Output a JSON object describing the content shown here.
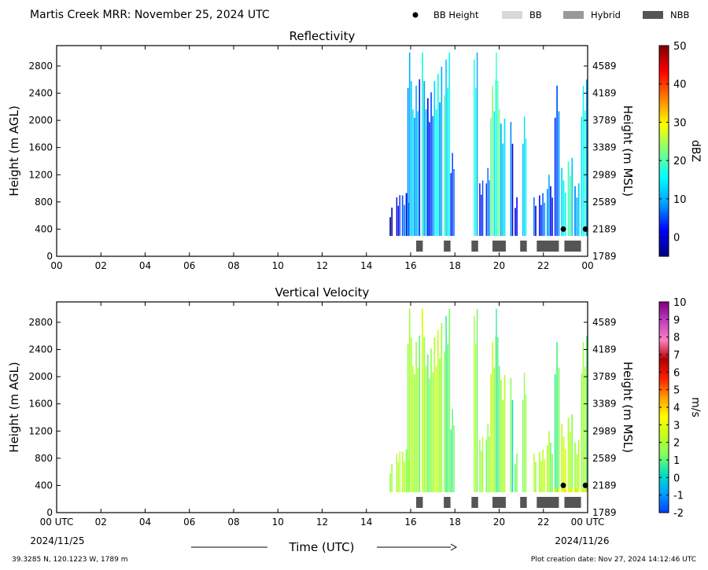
{
  "header": {
    "title": "Martis Creek MRR:  November 25, 2024 UTC",
    "legend": [
      {
        "label": "BB Height",
        "kind": "dot",
        "color": "#000000"
      },
      {
        "label": "BB",
        "kind": "rect",
        "color": "#d9d9d9"
      },
      {
        "label": "Hybrid",
        "kind": "rect",
        "color": "#999999"
      },
      {
        "label": "NBB",
        "kind": "rect",
        "color": "#555555"
      }
    ]
  },
  "colors": {
    "dbz_stops": [
      "#000080",
      "#0000ff",
      "#00a0ff",
      "#00ffff",
      "#7fff7f",
      "#ffff00",
      "#ff8000",
      "#ff0000",
      "#800000"
    ],
    "vv_stops": [
      "#0040ff",
      "#00a0ff",
      "#00e0c0",
      "#80ff60",
      "#c0ff20",
      "#ffff00",
      "#ffa000",
      "#ff2000",
      "#b00000",
      "#ff80c0",
      "#c040c0",
      "#800080"
    ]
  },
  "chart_data": [
    {
      "type": "heatmap",
      "title": "Reflectivity",
      "xlabel": "",
      "ylabel": "Height (m AGL)",
      "ylabel_right": "Height (m MSL)",
      "xlim": [
        0,
        24
      ],
      "ylim": [
        0,
        3100
      ],
      "x_ticks": [
        "00",
        "02",
        "04",
        "06",
        "08",
        "10",
        "12",
        "14",
        "16",
        "18",
        "20",
        "22",
        "00"
      ],
      "y_ticks": [
        "0",
        "400",
        "800",
        "1200",
        "1600",
        "2000",
        "2400",
        "2800"
      ],
      "y_ticks_right": [
        "1789",
        "2189",
        "2589",
        "2989",
        "3389",
        "3789",
        "4189",
        "4589"
      ],
      "colorbar": {
        "label": "dBZ",
        "range": [
          -5,
          50
        ],
        "ticks": [
          "0",
          "10",
          "20",
          "30",
          "40",
          "50"
        ]
      },
      "bb_heights": [
        [
          22.9,
          400
        ],
        [
          23.9,
          400
        ]
      ],
      "bb_type_segments": [
        {
          "type": "NBB",
          "start": 16.25,
          "end": 16.55
        },
        {
          "type": "NBB",
          "start": 17.5,
          "end": 17.8
        },
        {
          "type": "NBB",
          "start": 18.75,
          "end": 19.05
        },
        {
          "type": "NBB",
          "start": 19.7,
          "end": 20.3
        },
        {
          "type": "NBB",
          "start": 20.95,
          "end": 21.25
        },
        {
          "type": "NBB",
          "start": 21.7,
          "end": 22.7
        },
        {
          "type": "NBB",
          "start": 22.95,
          "end": 23.7
        }
      ],
      "echo_columns": [
        {
          "start": 15.05,
          "end": 15.2,
          "top": 800,
          "dbz": 0
        },
        {
          "start": 15.35,
          "end": 15.55,
          "top": 900,
          "dbz": 0
        },
        {
          "start": 15.6,
          "end": 15.95,
          "top": 1000,
          "dbz": 3
        },
        {
          "start": 15.85,
          "end": 16.15,
          "top": 3000,
          "dbz": 12
        },
        {
          "start": 16.15,
          "end": 16.45,
          "top": 2700,
          "dbz": 8
        },
        {
          "start": 16.5,
          "end": 16.75,
          "top": 3000,
          "dbz": 14
        },
        {
          "start": 16.75,
          "end": 17.05,
          "top": 2500,
          "dbz": 4
        },
        {
          "start": 17.05,
          "end": 17.45,
          "top": 3000,
          "dbz": 12
        },
        {
          "start": 17.5,
          "end": 17.8,
          "top": 3000,
          "dbz": 16
        },
        {
          "start": 17.8,
          "end": 18.0,
          "top": 1700,
          "dbz": 4
        },
        {
          "start": 18.85,
          "end": 19.05,
          "top": 3000,
          "dbz": 14
        },
        {
          "start": 19.1,
          "end": 19.3,
          "top": 1200,
          "dbz": 6
        },
        {
          "start": 19.4,
          "end": 19.6,
          "top": 1300,
          "dbz": 5
        },
        {
          "start": 19.6,
          "end": 19.9,
          "top": 2700,
          "dbz": 18
        },
        {
          "start": 19.85,
          "end": 20.05,
          "top": 3000,
          "dbz": 22
        },
        {
          "start": 20.05,
          "end": 20.3,
          "top": 2100,
          "dbz": 10
        },
        {
          "start": 20.5,
          "end": 20.65,
          "top": 2300,
          "dbz": 4
        },
        {
          "start": 20.7,
          "end": 20.85,
          "top": 900,
          "dbz": 3
        },
        {
          "start": 21.05,
          "end": 21.25,
          "top": 2300,
          "dbz": 10
        },
        {
          "start": 21.55,
          "end": 21.7,
          "top": 900,
          "dbz": 2
        },
        {
          "start": 21.8,
          "end": 22.1,
          "top": 1000,
          "dbz": 4
        },
        {
          "start": 22.15,
          "end": 22.45,
          "top": 1200,
          "dbz": 6
        },
        {
          "start": 22.5,
          "end": 22.75,
          "top": 2700,
          "dbz": 9
        },
        {
          "start": 22.8,
          "end": 23.05,
          "top": 1300,
          "dbz": 14
        },
        {
          "start": 23.1,
          "end": 23.35,
          "top": 1500,
          "dbz": 16
        },
        {
          "start": 23.4,
          "end": 23.65,
          "top": 1200,
          "dbz": 12
        },
        {
          "start": 23.7,
          "end": 24.0,
          "top": 2600,
          "dbz": 14
        }
      ]
    },
    {
      "type": "heatmap",
      "title": "Vertical Velocity",
      "xlabel": "Time (UTC)",
      "ylabel": "Height (m AGL)",
      "ylabel_right": "Height (m MSL)",
      "xlim": [
        0,
        24
      ],
      "ylim": [
        0,
        3100
      ],
      "x_ticks": [
        "00 UTC",
        "02",
        "04",
        "06",
        "08",
        "10",
        "12",
        "14",
        "16",
        "18",
        "20",
        "22",
        "00 UTC"
      ],
      "x_date_left": "2024/11/25",
      "x_date_right": "2024/11/26",
      "y_ticks": [
        "0",
        "400",
        "800",
        "1200",
        "1600",
        "2000",
        "2400",
        "2800"
      ],
      "y_ticks_right": [
        "1789",
        "2189",
        "2589",
        "2989",
        "3389",
        "3789",
        "4189",
        "4589"
      ],
      "colorbar": {
        "label": "m/s",
        "range": [
          -2,
          10
        ],
        "ticks": [
          "-2",
          "-1",
          "0",
          "1",
          "2",
          "3",
          "4",
          "5",
          "6",
          "7",
          "8",
          "9",
          "10"
        ]
      },
      "bb_heights": [
        [
          22.9,
          400
        ],
        [
          23.9,
          400
        ]
      ],
      "bb_type_segments": [
        {
          "type": "NBB",
          "start": 16.25,
          "end": 16.55
        },
        {
          "type": "NBB",
          "start": 17.5,
          "end": 17.8
        },
        {
          "type": "NBB",
          "start": 18.75,
          "end": 19.05
        },
        {
          "type": "NBB",
          "start": 19.7,
          "end": 20.3
        },
        {
          "type": "NBB",
          "start": 20.95,
          "end": 21.25
        },
        {
          "type": "NBB",
          "start": 21.7,
          "end": 22.7
        },
        {
          "type": "NBB",
          "start": 22.95,
          "end": 23.7
        }
      ],
      "echo_columns": [
        {
          "start": 15.05,
          "end": 15.2,
          "top": 800,
          "vv": 2.2
        },
        {
          "start": 15.35,
          "end": 15.55,
          "top": 900,
          "vv": 2.0
        },
        {
          "start": 15.6,
          "end": 15.95,
          "top": 1000,
          "vv": 1.8
        },
        {
          "start": 15.85,
          "end": 16.15,
          "top": 3000,
          "vv": 2.1
        },
        {
          "start": 16.15,
          "end": 16.45,
          "top": 2700,
          "vv": 1.6
        },
        {
          "start": 16.5,
          "end": 16.75,
          "top": 3000,
          "vv": 2.3
        },
        {
          "start": 16.75,
          "end": 17.05,
          "top": 2500,
          "vv": 1.4
        },
        {
          "start": 17.05,
          "end": 17.45,
          "top": 3000,
          "vv": 2.0
        },
        {
          "start": 17.5,
          "end": 17.8,
          "top": 3000,
          "vv": 1.2
        },
        {
          "start": 17.8,
          "end": 18.0,
          "top": 1700,
          "vv": 0.9
        },
        {
          "start": 18.85,
          "end": 19.05,
          "top": 3000,
          "vv": 1.7
        },
        {
          "start": 19.1,
          "end": 19.3,
          "top": 1200,
          "vv": 2.2
        },
        {
          "start": 19.4,
          "end": 19.6,
          "top": 1300,
          "vv": 1.3
        },
        {
          "start": 19.6,
          "end": 19.9,
          "top": 2700,
          "vv": 2.0
        },
        {
          "start": 19.85,
          "end": 20.05,
          "top": 3000,
          "vv": 1.1
        },
        {
          "start": 20.05,
          "end": 20.3,
          "top": 2100,
          "vv": 1.8
        },
        {
          "start": 20.5,
          "end": 20.65,
          "top": 2300,
          "vv": 0.9
        },
        {
          "start": 20.7,
          "end": 20.85,
          "top": 900,
          "vv": 1.5
        },
        {
          "start": 21.05,
          "end": 21.25,
          "top": 2300,
          "vv": 1.2
        },
        {
          "start": 21.55,
          "end": 21.7,
          "top": 900,
          "vv": 1.9
        },
        {
          "start": 21.8,
          "end": 22.1,
          "top": 1000,
          "vv": 2.2
        },
        {
          "start": 22.15,
          "end": 22.45,
          "top": 1200,
          "vv": 1.7
        },
        {
          "start": 22.5,
          "end": 22.75,
          "top": 2700,
          "vv": 1.3
        },
        {
          "start": 22.8,
          "end": 23.05,
          "top": 1300,
          "vv": 2.5
        },
        {
          "start": 23.1,
          "end": 23.35,
          "top": 1500,
          "vv": 1.8
        },
        {
          "start": 23.4,
          "end": 23.65,
          "top": 1200,
          "vv": 2.2
        },
        {
          "start": 23.7,
          "end": 24.0,
          "top": 2600,
          "vv": 1.6
        }
      ],
      "near_surface_max": {
        "start": 22.5,
        "end": 24.0,
        "top": 350,
        "vv": 3.8
      }
    }
  ],
  "footer": {
    "location": "39.3285 N, 120.1223 W, 1789 m",
    "creation": "Plot creation date: Nov 27, 2024 14:12:46 UTC"
  }
}
